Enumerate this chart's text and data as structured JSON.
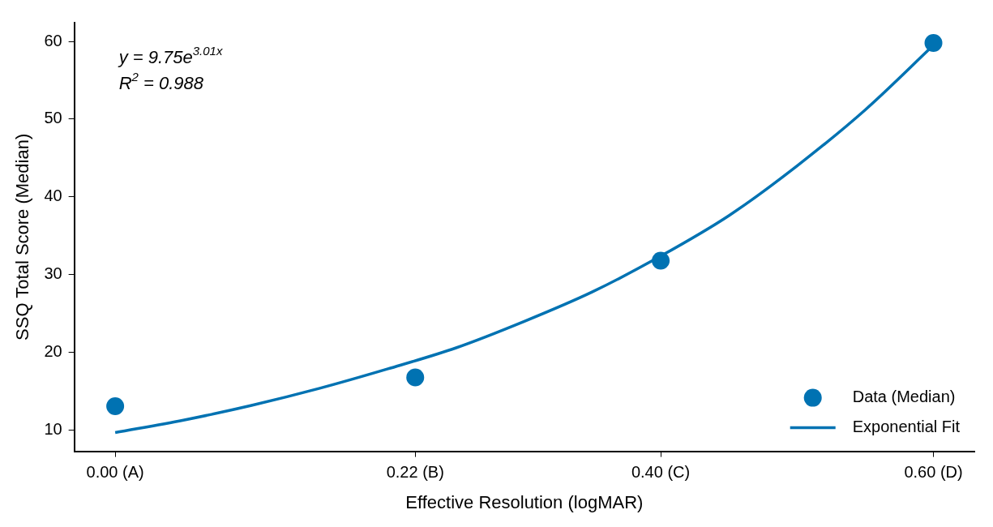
{
  "chart_data": {
    "type": "scatter",
    "xlabel": "Effective Resolution (logMAR)",
    "ylabel": "SSQ Total Score (Median)",
    "annotations": [
      "y = 9.75e$^{3.01x}$",
      "R$^{2}$ = 0.988"
    ],
    "series": [
      {
        "name": "Data (Median)",
        "type": "scatter",
        "color": "#0072b2",
        "marker": "circle",
        "x": [
          0,
          0.22,
          0.4,
          0.6
        ],
        "values": [
          13.1,
          16.8,
          31.8,
          59.8
        ]
      },
      {
        "name": "Exponential Fit",
        "type": "line",
        "color": "#0072b2",
        "marker": "none",
        "line_style": "solid",
        "x": [
          0,
          0.05,
          0.1,
          0.15,
          0.2,
          0.25,
          0.3,
          0.35,
          0.4,
          0.45,
          0.5,
          0.55,
          0.6
        ],
        "values": [
          9.7,
          11.3,
          13.2,
          15.4,
          17.9,
          20.6,
          24.0,
          27.8,
          32.4,
          37.6,
          44.0,
          51.2,
          59.5
        ]
      }
    ],
    "xlim": [
      -0.03,
      0.63
    ],
    "xticks": [
      {
        "value": 0,
        "label": "0.00 (A)"
      },
      {
        "value": 0.22,
        "label": "0.22 (B)"
      },
      {
        "value": 0.4,
        "label": "0.40 (C)"
      },
      {
        "value": 0.6,
        "label": "0.60 (D)"
      }
    ],
    "ylim": [
      7.3,
      62.4
    ],
    "yticks": [
      10,
      20,
      30,
      40,
      50,
      60
    ],
    "grid": false,
    "legend": "bottom right"
  }
}
